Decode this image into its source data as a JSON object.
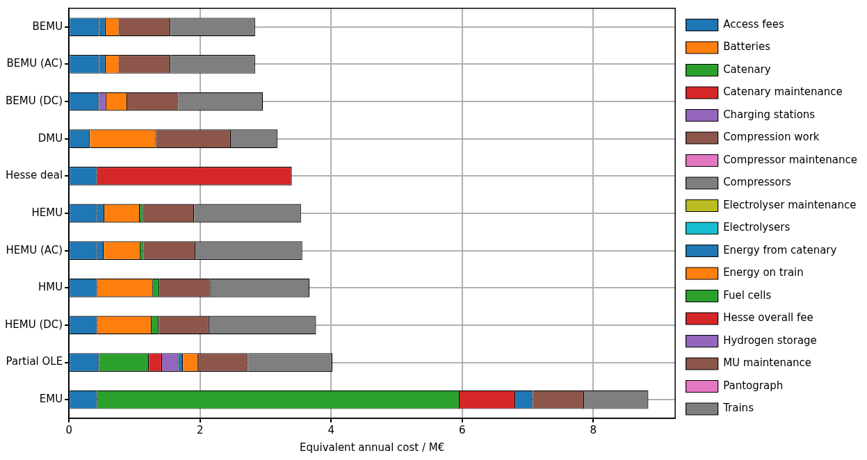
{
  "chart_data": {
    "type": "bar",
    "orientation": "horizontal",
    "stacked": true,
    "xlabel": "Equivalent annual cost / M€",
    "categories": [
      "BEMU",
      "BEMU (AC)",
      "BEMU (DC)",
      "DMU",
      "Hesse deal",
      "HEMU",
      "HEMU (AC)",
      "HMU",
      "HEMU (DC)",
      "Partial OLE",
      "EMU"
    ],
    "xlim": [
      0,
      9.25
    ],
    "xticks": [
      0,
      2,
      4,
      6,
      8
    ],
    "grid": true,
    "legend": "right",
    "series": [
      {
        "name": "Access fees",
        "color": "#1f77b4",
        "values": [
          0.46,
          0.46,
          0.46,
          0.32,
          0.43,
          0.43,
          0.43,
          0.43,
          0.43,
          0.46,
          0.43
        ]
      },
      {
        "name": "Batteries",
        "color": "#ff7f0e",
        "values": [
          0,
          0,
          0,
          0,
          0,
          0,
          0,
          0,
          0,
          0,
          0
        ]
      },
      {
        "name": "Catenary",
        "color": "#2ca02c",
        "values": [
          0,
          0,
          0,
          0,
          0,
          0,
          0,
          0,
          0,
          0.76,
          5.53
        ]
      },
      {
        "name": "Catenary maintenance",
        "color": "#d62728",
        "values": [
          0,
          0,
          0,
          0,
          0,
          0,
          0,
          0,
          0,
          0.2,
          0.85
        ]
      },
      {
        "name": "Charging stations",
        "color": "#9467bd",
        "values": [
          0,
          0,
          0.11,
          0,
          0,
          0,
          0,
          0,
          0,
          0.25,
          0
        ]
      },
      {
        "name": "Compression work",
        "color": "#8c564b",
        "values": [
          0,
          0,
          0,
          0,
          0,
          0,
          0,
          0,
          0,
          0,
          0
        ]
      },
      {
        "name": "Compressor maintenance",
        "color": "#e377c2",
        "values": [
          0,
          0,
          0,
          0,
          0,
          0,
          0,
          0,
          0,
          0,
          0
        ]
      },
      {
        "name": "Compressors",
        "color": "#7f7f7f",
        "values": [
          0,
          0,
          0,
          0,
          0,
          0,
          0,
          0,
          0,
          0,
          0
        ]
      },
      {
        "name": "Electrolyser maintenance",
        "color": "#bcbd22",
        "values": [
          0,
          0,
          0,
          0,
          0,
          0,
          0,
          0,
          0,
          0,
          0
        ]
      },
      {
        "name": "Electrolysers",
        "color": "#17becf",
        "values": [
          0,
          0,
          0,
          0,
          0,
          0,
          0,
          0,
          0,
          0,
          0
        ]
      },
      {
        "name": "Energy from catenary",
        "color": "#1f77b4",
        "values": [
          0.1,
          0.1,
          0,
          0,
          0,
          0.11,
          0.1,
          0,
          0,
          0.07,
          0.27
        ]
      },
      {
        "name": "Energy on train",
        "color": "#ff7f0e",
        "values": [
          0.21,
          0.21,
          0.32,
          1.01,
          0,
          0.54,
          0.56,
          0.85,
          0.83,
          0.23,
          0
        ]
      },
      {
        "name": "Fuel cells",
        "color": "#2ca02c",
        "values": [
          0,
          0,
          0,
          0,
          0,
          0.05,
          0.05,
          0.1,
          0.11,
          0,
          0
        ]
      },
      {
        "name": "Hesse overall fee",
        "color": "#d62728",
        "values": [
          0,
          0,
          0,
          0,
          2.97,
          0,
          0,
          0,
          0,
          0,
          0
        ]
      },
      {
        "name": "Hydrogen storage",
        "color": "#9467bd",
        "values": [
          0,
          0,
          0,
          0,
          0,
          0,
          0,
          0,
          0,
          0,
          0
        ]
      },
      {
        "name": "MU maintenance",
        "color": "#8c564b",
        "values": [
          0.78,
          0.78,
          0.78,
          1.14,
          0,
          0.78,
          0.79,
          0.78,
          0.77,
          0.76,
          0.78
        ]
      },
      {
        "name": "Pantograph",
        "color": "#e377c2",
        "values": [
          0,
          0,
          0,
          0,
          0,
          0,
          0,
          0,
          0,
          0,
          0
        ]
      },
      {
        "name": "Trains",
        "color": "#7f7f7f",
        "values": [
          1.29,
          1.29,
          1.29,
          0.71,
          0,
          1.63,
          1.63,
          1.51,
          1.63,
          1.29,
          0.98
        ]
      }
    ]
  }
}
